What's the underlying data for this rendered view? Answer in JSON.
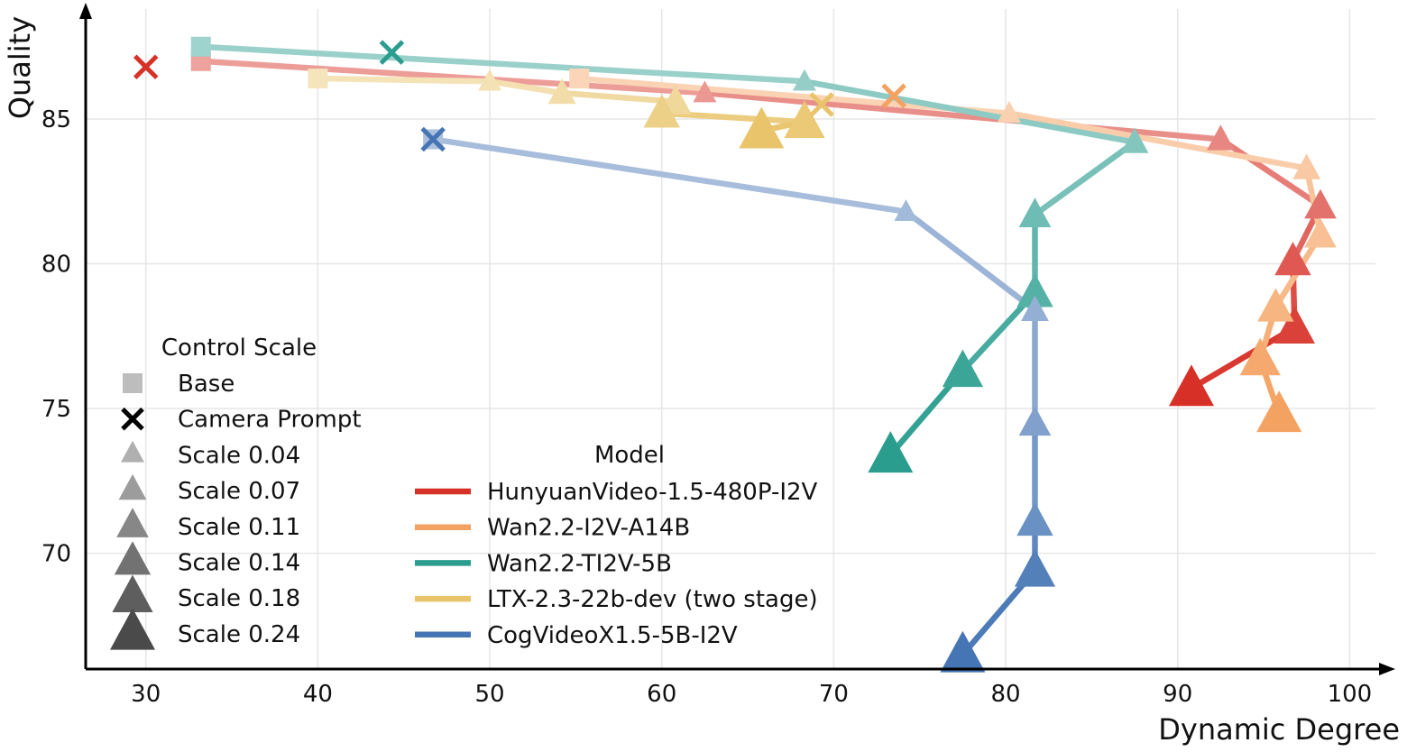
{
  "chart_data": {
    "type": "line",
    "title": "",
    "xlabel": "Dynamic Degree",
    "ylabel": "Quality",
    "xlim": [
      26.5,
      101.5
    ],
    "ylim": [
      66.0,
      88.8
    ],
    "xticks": [
      30,
      40,
      50,
      60,
      70,
      80,
      90,
      100
    ],
    "yticks": [
      70,
      75,
      80,
      85
    ],
    "grid": true,
    "marker_legend": {
      "title": "Control Scale",
      "items": [
        {
          "label": "Base",
          "marker": "square"
        },
        {
          "label": "Camera Prompt",
          "marker": "x"
        },
        {
          "label": "Scale 0.04",
          "marker": "triangle",
          "scale": 0.04
        },
        {
          "label": "Scale 0.07",
          "marker": "triangle",
          "scale": 0.07
        },
        {
          "label": "Scale 0.11",
          "marker": "triangle",
          "scale": 0.11
        },
        {
          "label": "Scale 0.14",
          "marker": "triangle",
          "scale": 0.14
        },
        {
          "label": "Scale 0.18",
          "marker": "triangle",
          "scale": 0.18
        },
        {
          "label": "Scale 0.24",
          "marker": "triangle",
          "scale": 0.24
        }
      ]
    },
    "model_legend": {
      "title": "Model",
      "placement": "lower-center"
    },
    "series": [
      {
        "name": "HunyuanVideo-1.5-480P-I2V",
        "color": "#d73027",
        "camera_prompt": {
          "x": 30.0,
          "y": 86.8
        },
        "points": [
          {
            "x": 33.2,
            "y": 87.0,
            "marker": "square"
          },
          {
            "x": 62.5,
            "y": 85.9,
            "marker": "triangle",
            "scale": 0.04
          },
          {
            "x": 92.5,
            "y": 84.3,
            "marker": "triangle",
            "scale": 0.07
          },
          {
            "x": 98.3,
            "y": 82.0,
            "marker": "triangle",
            "scale": 0.11
          },
          {
            "x": 96.7,
            "y": 80.1,
            "marker": "triangle",
            "scale": 0.14
          },
          {
            "x": 96.8,
            "y": 77.8,
            "marker": "triangle",
            "scale": 0.18
          },
          {
            "x": 90.8,
            "y": 75.7,
            "marker": "triangle",
            "scale": 0.24
          }
        ]
      },
      {
        "name": "Wan2.2-I2V-A14B",
        "color": "#f4a261",
        "camera_prompt": {
          "x": 73.5,
          "y": 85.8
        },
        "points": [
          {
            "x": 55.2,
            "y": 86.4,
            "marker": "square"
          },
          {
            "x": 80.2,
            "y": 85.2,
            "marker": "triangle",
            "scale": 0.04
          },
          {
            "x": 97.5,
            "y": 83.3,
            "marker": "triangle",
            "scale": 0.07
          },
          {
            "x": 98.3,
            "y": 81.0,
            "marker": "triangle",
            "scale": 0.11
          },
          {
            "x": 95.7,
            "y": 78.5,
            "marker": "triangle",
            "scale": 0.14
          },
          {
            "x": 94.8,
            "y": 76.7,
            "marker": "triangle",
            "scale": 0.18
          },
          {
            "x": 95.9,
            "y": 74.8,
            "marker": "triangle",
            "scale": 0.24
          }
        ]
      },
      {
        "name": "Wan2.2-TI2V-5B",
        "color": "#2a9d8f",
        "camera_prompt": {
          "x": 44.3,
          "y": 87.3
        },
        "points": [
          {
            "x": 33.2,
            "y": 87.5,
            "marker": "square"
          },
          {
            "x": 68.3,
            "y": 86.3,
            "marker": "triangle",
            "scale": 0.04
          },
          {
            "x": 87.5,
            "y": 84.2,
            "marker": "triangle",
            "scale": 0.07
          },
          {
            "x": 81.7,
            "y": 81.7,
            "marker": "triangle",
            "scale": 0.11
          },
          {
            "x": 81.7,
            "y": 79.0,
            "marker": "triangle",
            "scale": 0.14
          },
          {
            "x": 77.5,
            "y": 76.3,
            "marker": "triangle",
            "scale": 0.18
          },
          {
            "x": 73.3,
            "y": 73.4,
            "marker": "triangle",
            "scale": 0.24
          }
        ]
      },
      {
        "name": "LTX-2.3-22b-dev (two stage)",
        "color": "#e9c46a",
        "camera_prompt": {
          "x": 69.3,
          "y": 85.5
        },
        "points": [
          {
            "x": 40.0,
            "y": 86.4,
            "marker": "square"
          },
          {
            "x": 50.0,
            "y": 86.3,
            "marker": "triangle",
            "scale": 0.04
          },
          {
            "x": 54.2,
            "y": 85.9,
            "marker": "triangle",
            "scale": 0.07
          },
          {
            "x": 60.8,
            "y": 85.6,
            "marker": "triangle",
            "scale": 0.11
          },
          {
            "x": 60.0,
            "y": 85.2,
            "marker": "triangle",
            "scale": 0.14
          },
          {
            "x": 68.3,
            "y": 84.9,
            "marker": "triangle",
            "scale": 0.18
          },
          {
            "x": 65.8,
            "y": 84.6,
            "marker": "triangle",
            "scale": 0.24
          }
        ]
      },
      {
        "name": "CogVideoX1.5-5B-I2V",
        "color": "#4575b4",
        "camera_prompt": {
          "x": 46.7,
          "y": 84.3
        },
        "points": [
          {
            "x": 46.7,
            "y": 84.3,
            "marker": "square"
          },
          {
            "x": 74.2,
            "y": 81.8,
            "marker": "triangle",
            "scale": 0.04
          },
          {
            "x": 81.7,
            "y": 78.4,
            "marker": "triangle",
            "scale": 0.07
          },
          {
            "x": 81.7,
            "y": 74.5,
            "marker": "triangle",
            "scale": 0.11
          },
          {
            "x": 81.7,
            "y": 71.1,
            "marker": "triangle",
            "scale": 0.14
          },
          {
            "x": 81.7,
            "y": 69.4,
            "marker": "triangle",
            "scale": 0.18
          },
          {
            "x": 77.5,
            "y": 66.5,
            "marker": "triangle",
            "scale": 0.24
          }
        ]
      }
    ]
  }
}
